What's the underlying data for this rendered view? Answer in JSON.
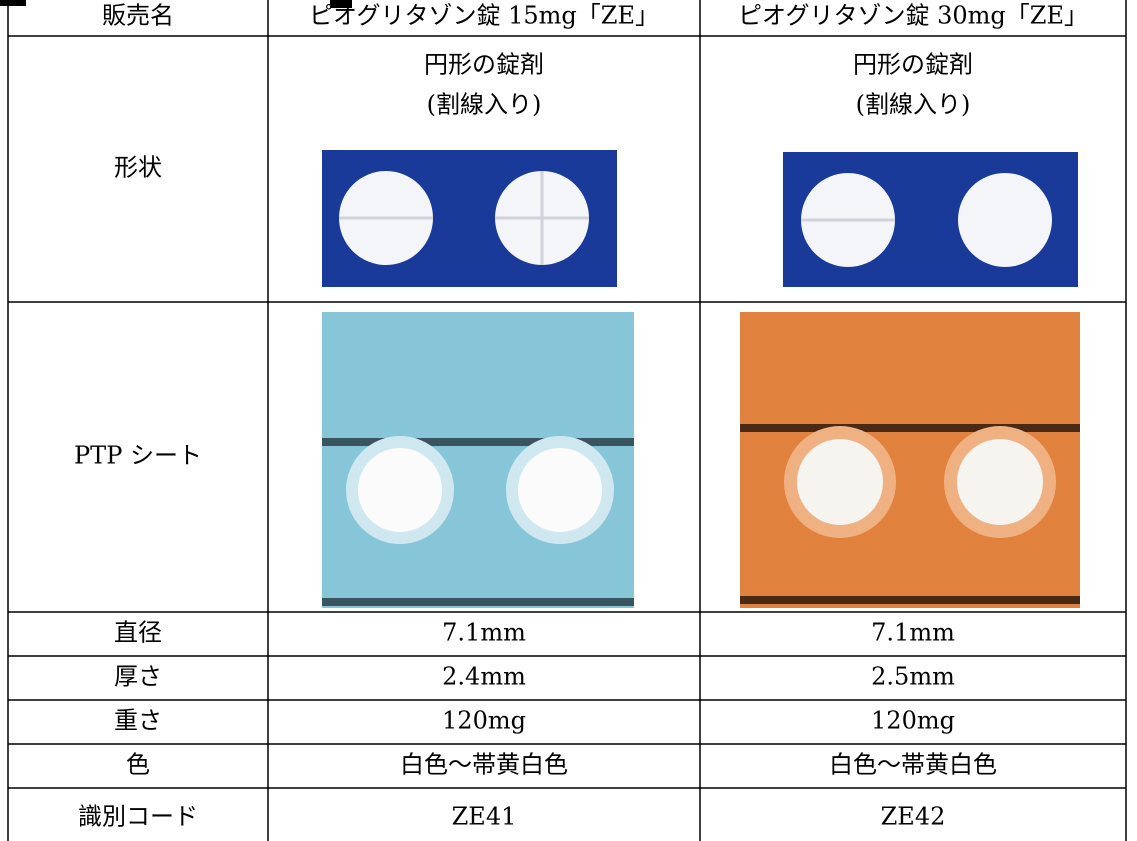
{
  "table": {
    "rows": [
      {
        "label": "販売名",
        "values": [
          "ピオグリタゾン錠 15mg「ZE」",
          "ピオグリタゾン錠 30mg「ZE」"
        ]
      },
      {
        "label": "形状",
        "values": [
          [
            "円形の錠剤",
            "(割線入り)"
          ],
          [
            "円形の錠剤",
            "(割線入り)"
          ]
        ]
      },
      {
        "label": "PTP シート",
        "values": []
      },
      {
        "label": "直径",
        "values": [
          "7.1mm",
          "7.1mm"
        ]
      },
      {
        "label": "厚さ",
        "values": [
          "2.4mm",
          "2.5mm"
        ]
      },
      {
        "label": "重さ",
        "values": [
          "120mg",
          "120mg"
        ]
      },
      {
        "label": "色",
        "values": [
          "白色～帯黄白色",
          "白色～帯黄白色"
        ]
      },
      {
        "label": "識別コード",
        "values": [
          "ZE41",
          "ZE42"
        ]
      }
    ]
  }
}
